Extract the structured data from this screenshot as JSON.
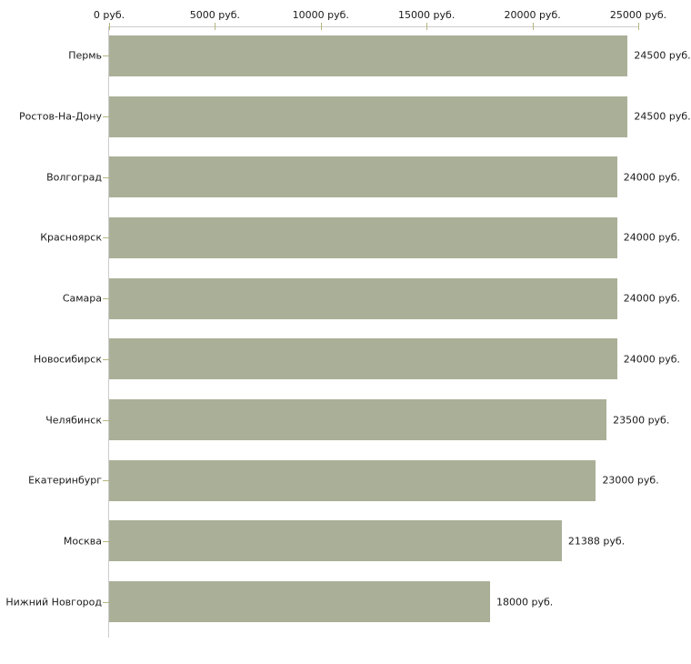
{
  "chart_data": {
    "type": "bar",
    "orientation": "horizontal",
    "title": "",
    "xlabel": "",
    "ylabel": "",
    "unit": "руб.",
    "xlim": [
      0,
      25000
    ],
    "grid": false,
    "legend": false,
    "x_ticks": [
      0,
      5000,
      10000,
      15000,
      20000,
      25000
    ],
    "x_tick_labels": [
      "0 руб.",
      "5000 руб.",
      "10000 руб.",
      "15000 руб.",
      "20000 руб.",
      "25000 руб."
    ],
    "categories": [
      "Пермь",
      "Ростов-На-Дону",
      "Волгоград",
      "Красноярск",
      "Самара",
      "Новосибирск",
      "Челябинск",
      "Екатеринбург",
      "Москва",
      "Нижний Новгород"
    ],
    "values": [
      24500,
      24500,
      24000,
      24000,
      24000,
      24000,
      23500,
      23000,
      21388,
      18000
    ],
    "value_labels": [
      "24500 руб.",
      "24500 руб.",
      "24000 руб.",
      "24000 руб.",
      "24000 руб.",
      "24000 руб.",
      "23500 руб.",
      "23000 руб.",
      "21388 руб.",
      "18000 руб."
    ],
    "colors": {
      "bar": "#a9b097",
      "axis_line": "#cccccc",
      "tick": "#b5b57e",
      "text": "#1a1a1a",
      "background": "#ffffff"
    }
  }
}
